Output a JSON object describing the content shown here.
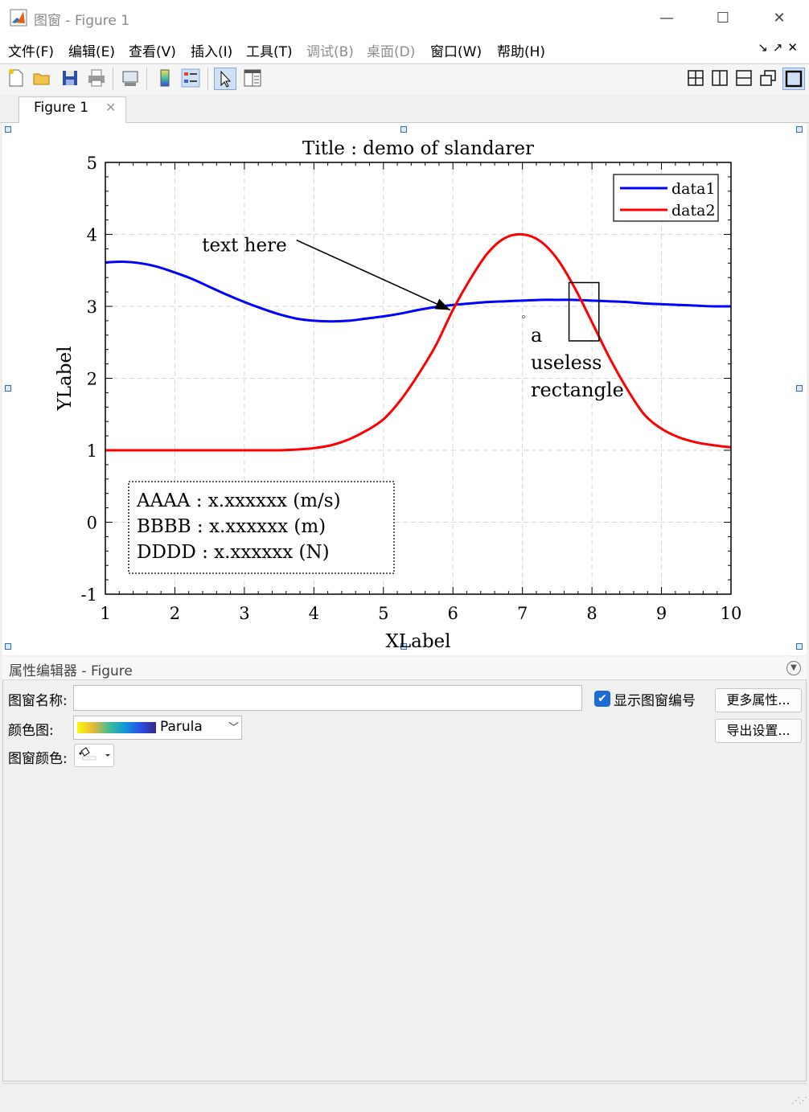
{
  "window": {
    "title": "图窗 - Figure 1",
    "controls": {
      "minimize": "—",
      "maximize": "☐",
      "close": "✕"
    }
  },
  "menubar": {
    "items": [
      {
        "label": "文件(F)",
        "enabled": true
      },
      {
        "label": "编辑(E)",
        "enabled": true
      },
      {
        "label": "查看(V)",
        "enabled": true
      },
      {
        "label": "插入(I)",
        "enabled": true
      },
      {
        "label": "工具(T)",
        "enabled": true
      },
      {
        "label": "调试(B)",
        "enabled": false
      },
      {
        "label": "桌面(D)",
        "enabled": false
      },
      {
        "label": "窗口(W)",
        "enabled": true
      },
      {
        "label": "帮助(H)",
        "enabled": true
      }
    ],
    "right_icons": [
      "undock-icon",
      "dock-icon",
      "close-icon"
    ]
  },
  "toolbar": {
    "left_icons": [
      "new-figure-icon",
      "open-file-icon",
      "save-icon",
      "print-icon",
      "link-plot-icon",
      "colorbar-icon",
      "legend-icon",
      "edit-plot-arrow-icon",
      "property-inspector-icon"
    ],
    "right_icons": [
      "tile-grid-icon",
      "tile-columns-icon",
      "tile-rows-icon",
      "float-icon",
      "maximize-icon"
    ]
  },
  "tabs": [
    {
      "label": "Figure 1",
      "active": true
    }
  ],
  "chart_data": {
    "type": "line",
    "title": "Title : demo of slandarer",
    "xlabel": "XLabel",
    "ylabel": "YLabel",
    "xlim": [
      1,
      10
    ],
    "ylim": [
      -1,
      5
    ],
    "xticks": [
      "1",
      "2",
      "3",
      "4",
      "5",
      "6",
      "7",
      "8",
      "9",
      "10"
    ],
    "yticks": [
      "-1",
      "0",
      "1",
      "2",
      "3",
      "4",
      "5"
    ],
    "grid": true,
    "legend_position": "top-right",
    "series": [
      {
        "name": "data1",
        "color": "#0000ff",
        "x": [
          1,
          1.25,
          1.5,
          1.75,
          2,
          2.25,
          2.5,
          2.75,
          3,
          3.25,
          3.5,
          3.75,
          4,
          4.25,
          4.5,
          4.75,
          5,
          5.25,
          5.5,
          5.75,
          6,
          6.25,
          6.5,
          6.75,
          7,
          7.25,
          7.5,
          7.75,
          8,
          8.25,
          8.5,
          8.75,
          9,
          9.25,
          9.5,
          9.75,
          10
        ],
        "y": [
          3.61,
          3.62,
          3.6,
          3.55,
          3.47,
          3.38,
          3.27,
          3.16,
          3.06,
          2.97,
          2.89,
          2.83,
          2.8,
          2.79,
          2.8,
          2.83,
          2.86,
          2.9,
          2.95,
          2.99,
          3.02,
          3.04,
          3.06,
          3.07,
          3.08,
          3.09,
          3.09,
          3.09,
          3.08,
          3.07,
          3.06,
          3.04,
          3.03,
          3.02,
          3.01,
          3.0,
          3.0
        ]
      },
      {
        "name": "data2",
        "color": "#ff0000",
        "x": [
          1,
          1.25,
          1.5,
          1.75,
          2,
          2.25,
          2.5,
          2.75,
          3,
          3.25,
          3.5,
          3.75,
          4,
          4.25,
          4.5,
          4.75,
          5,
          5.25,
          5.5,
          5.75,
          6,
          6.25,
          6.5,
          6.75,
          7,
          7.25,
          7.5,
          7.75,
          8,
          8.25,
          8.5,
          8.75,
          9,
          9.25,
          9.5,
          9.75,
          10
        ],
        "y": [
          1.0,
          1.0,
          1.0,
          1.0,
          1.0,
          1.0,
          1.0,
          1.0,
          1.0,
          1.0,
          1.0,
          1.01,
          1.03,
          1.07,
          1.15,
          1.27,
          1.43,
          1.7,
          2.05,
          2.45,
          2.95,
          3.38,
          3.74,
          3.95,
          4.0,
          3.91,
          3.66,
          3.26,
          2.78,
          2.29,
          1.86,
          1.5,
          1.3,
          1.18,
          1.11,
          1.07,
          1.04
        ]
      }
    ],
    "annotations": {
      "arrow_text": "text here",
      "arrow_from": [
        3.75,
        3.92
      ],
      "arrow_to": [
        5.96,
        2.95
      ],
      "rectangle": {
        "x": 7.67,
        "y": 2.52,
        "width": 0.43,
        "height": 0.81
      },
      "rectangle_text": [
        "a",
        "useless",
        "rectangle"
      ],
      "textbox_lines": [
        "AAAA : x.xxxxxx (m/s)",
        "BBBB : x.xxxxxx (m)",
        "DDDD : x.xxxxxx (N)"
      ]
    }
  },
  "property_editor": {
    "title": "属性编辑器 - Figure",
    "name_label": "图窗名称:",
    "name_value": "",
    "show_number_label": "显示图窗编号",
    "show_number_checked": true,
    "more_props_button": "更多属性...",
    "export_button": "导出设置...",
    "colormap_label": "颜色图:",
    "colormap_value": "Parula",
    "figure_color_label": "图窗颜色:"
  }
}
